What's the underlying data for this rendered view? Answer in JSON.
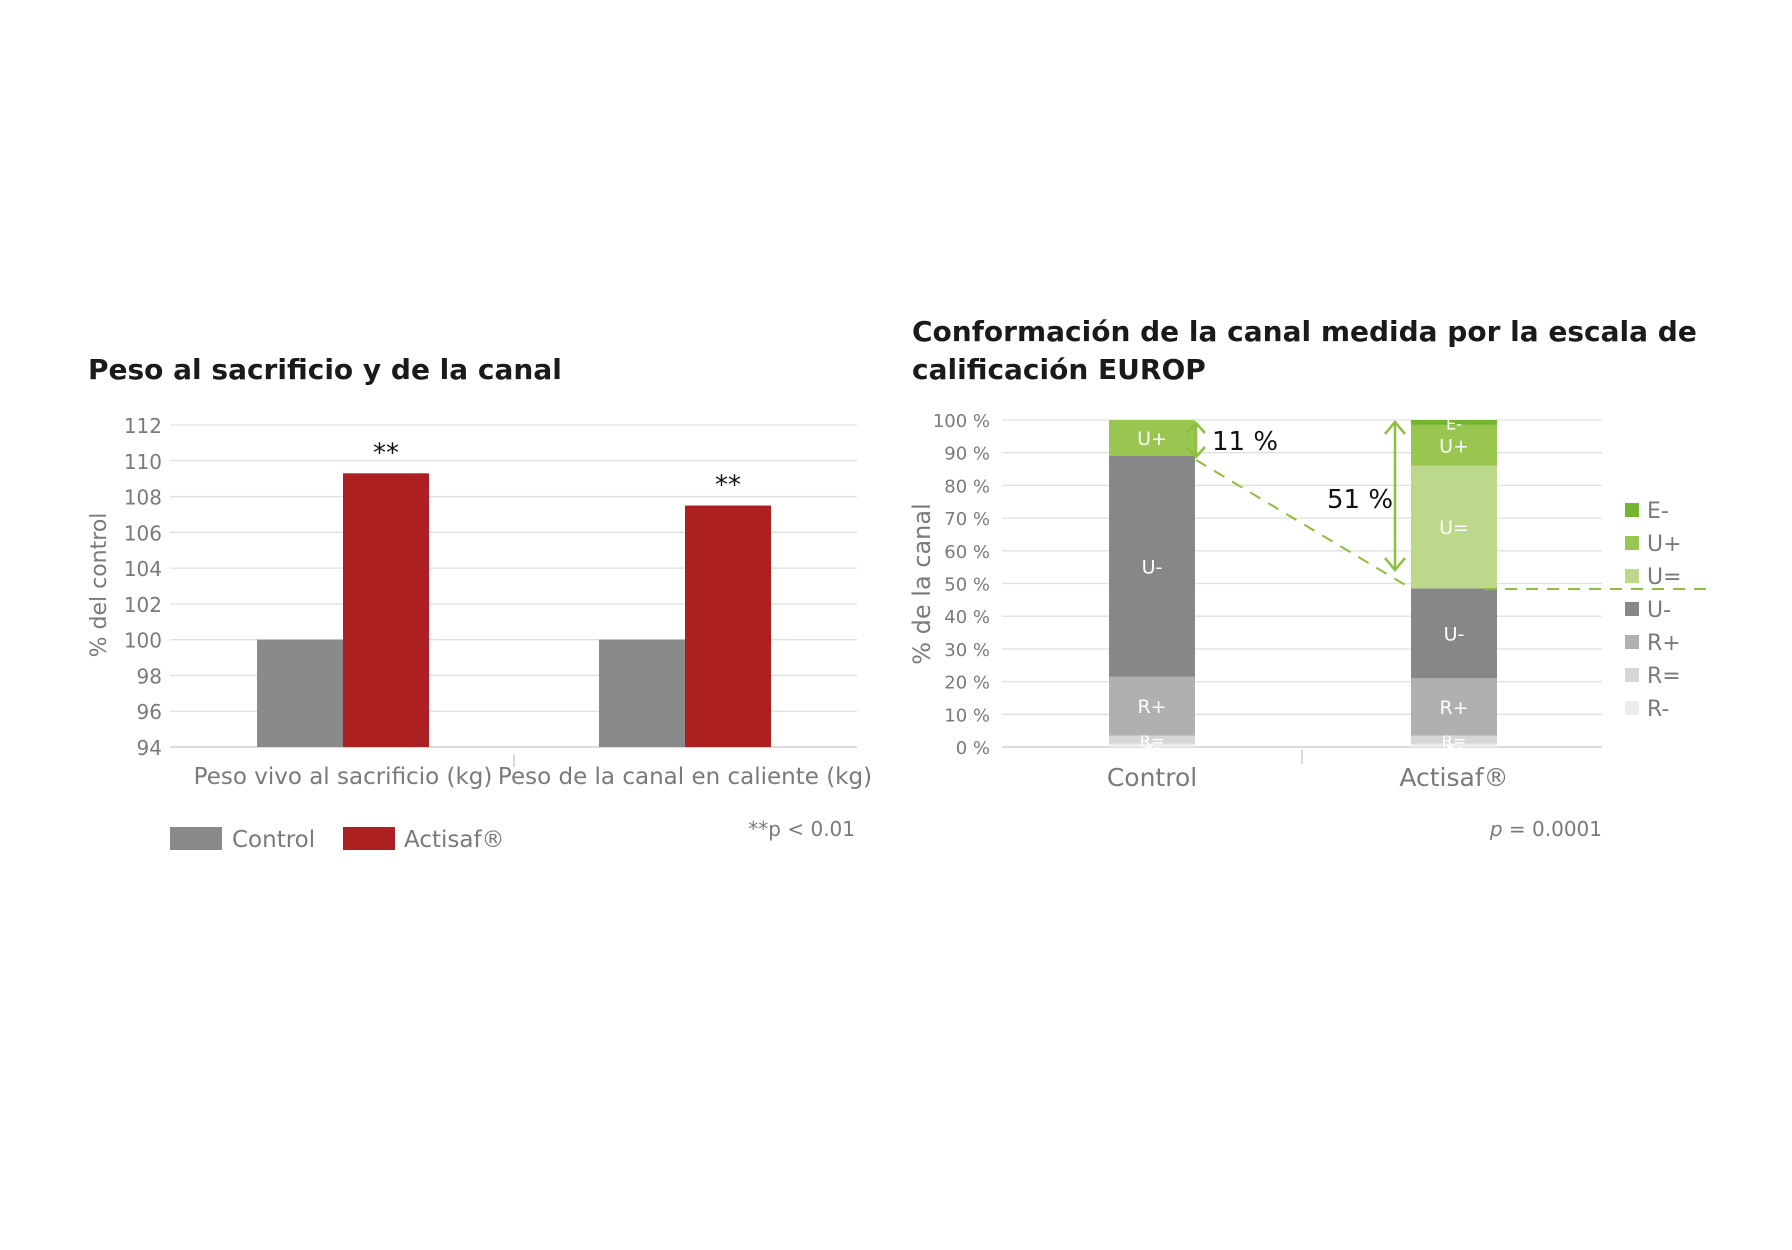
{
  "chart_data": [
    {
      "type": "bar",
      "title": "Peso al sacrificio y de la canal",
      "xlabel": "",
      "ylabel": "% del control",
      "ylim": [
        94,
        112
      ],
      "yticks": [
        "94",
        "96",
        "98",
        "100",
        "102",
        "104",
        "106",
        "108",
        "110",
        "112"
      ],
      "categories": [
        "Peso vivo al sacrificio (kg)",
        "Peso de la canal en caliente (kg)"
      ],
      "series": [
        {
          "name": "Control",
          "values": [
            100,
            100
          ],
          "color": "#8a8a8a"
        },
        {
          "name": "Actisaf®",
          "values": [
            109.3,
            107.5
          ],
          "color": "#ad2021"
        }
      ],
      "significance_marks": [
        "**",
        "**"
      ],
      "note": "**p < 0.01",
      "grid": true,
      "legend_position": "bottom-left"
    },
    {
      "type": "bar",
      "stacked": true,
      "title": "Conformación de la canal medida por la escala de calificación EUROP",
      "xlabel": "",
      "ylabel": "% de la canal",
      "ylim": [
        0,
        100
      ],
      "yticks": [
        "0 %",
        "10 %",
        "20 %",
        "30 %",
        "40 %",
        "50 %",
        "60 %",
        "70 %",
        "80 %",
        "90 %",
        "100 %"
      ],
      "categories": [
        "Control",
        "Actisaf®"
      ],
      "series": [
        {
          "name": "R-",
          "values": [
            1,
            1
          ],
          "color": "#ececec"
        },
        {
          "name": "R=",
          "values": [
            2.5,
            2.5
          ],
          "color": "#d6d6d6"
        },
        {
          "name": "R+",
          "values": [
            18,
            17.5
          ],
          "color": "#b0b0b0"
        },
        {
          "name": "U-",
          "values": [
            67.5,
            27.5
          ],
          "color": "#878787"
        },
        {
          "name": "U=",
          "values": [
            0,
            37.5
          ],
          "color": "#bcd98b"
        },
        {
          "name": "U+",
          "values": [
            11,
            12.5
          ],
          "color": "#98c651"
        },
        {
          "name": "E-",
          "values": [
            0,
            1.5
          ],
          "color": "#73b52e"
        }
      ],
      "legend_order": [
        "E-",
        "U+",
        "U=",
        "U-",
        "R+",
        "R=",
        "R-"
      ],
      "annotations": [
        "11 %",
        "51 %"
      ],
      "note_italic": "p",
      "note": " = 0.0001",
      "grid": true,
      "legend_position": "right"
    }
  ]
}
